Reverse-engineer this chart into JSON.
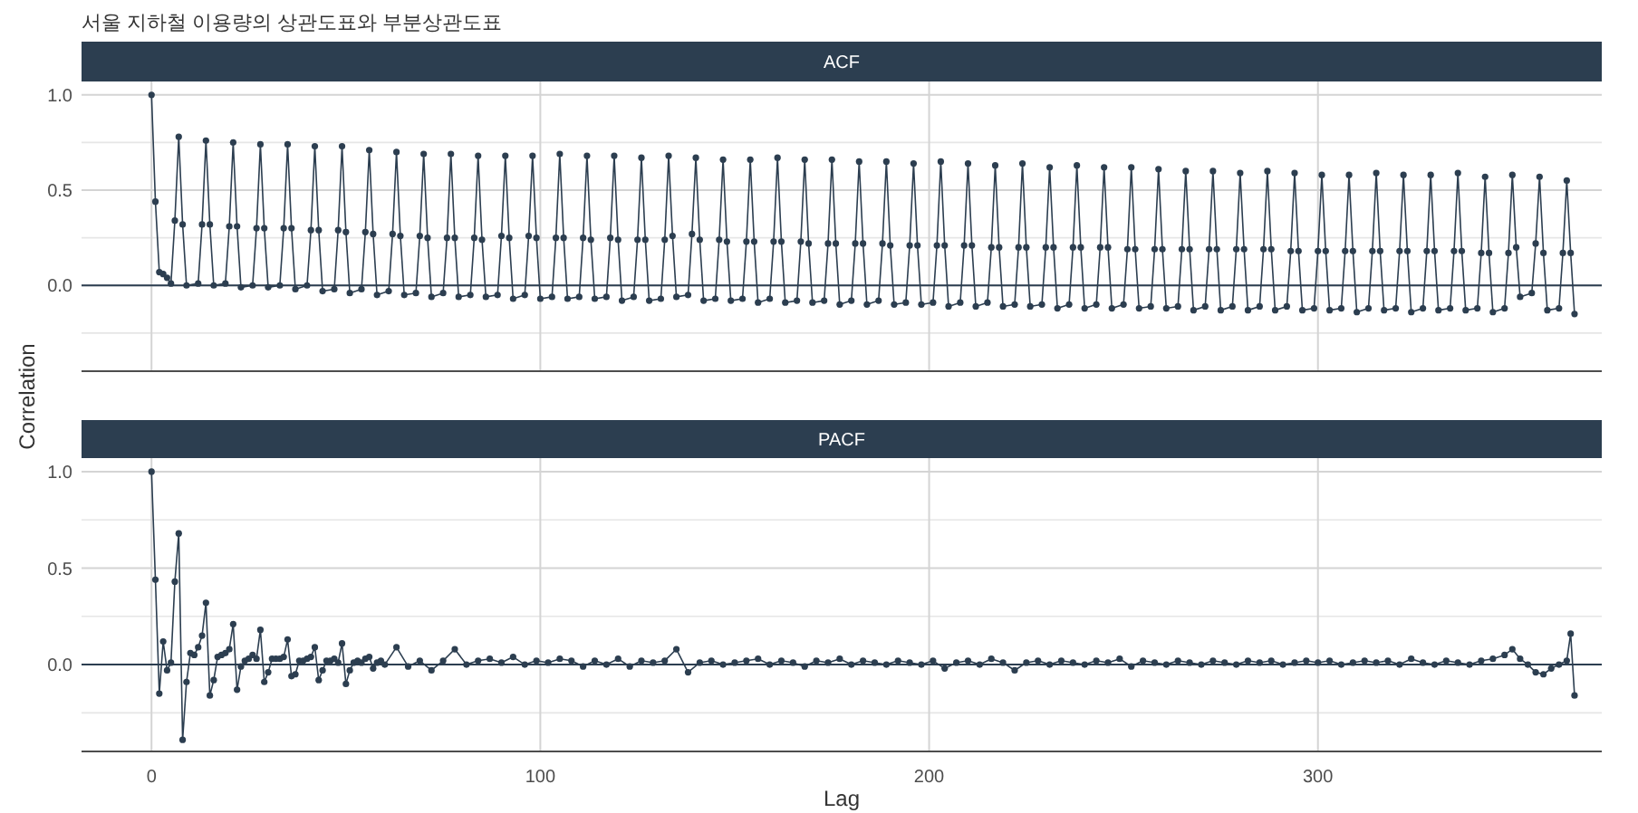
{
  "chart_data": [
    {
      "type": "line",
      "title": "서울 지하철 이용량의 상관도표와 부분상관도표",
      "subtitle": "ACF",
      "ylabel": "Correlation",
      "xlim": [
        -18,
        373
      ],
      "ylim": [
        -0.45,
        1.07
      ],
      "xticks": [
        0,
        100,
        200,
        300
      ],
      "yticks": [
        {
          "value": 0,
          "label": "0.0"
        },
        {
          "value": 0.5,
          "label": "0.5"
        },
        {
          "value": 1,
          "label": "1.0"
        }
      ],
      "tick_labels": "y",
      "grid": true,
      "marker": "circle",
      "line_style": "solid",
      "ref_lines": [
        {
          "axis": "y",
          "value": 0,
          "color": "#2c3e50"
        }
      ],
      "series": [
        {
          "color": "#2c3e50",
          "x": [
            0,
            1,
            2,
            3,
            4,
            5,
            6,
            7,
            8,
            9,
            12,
            13,
            14,
            15,
            16,
            19,
            20,
            21,
            22,
            23,
            26,
            27,
            28,
            29,
            30,
            33,
            34,
            35,
            36,
            37,
            40,
            41,
            42,
            43,
            44,
            47,
            48,
            49,
            50,
            51,
            54,
            55,
            56,
            57,
            58,
            61,
            62,
            63,
            64,
            65,
            68,
            69,
            70,
            71,
            72,
            75,
            76,
            77,
            78,
            79,
            82,
            83,
            84,
            85,
            86,
            89,
            90,
            91,
            92,
            93,
            96,
            97,
            98,
            99,
            100,
            103,
            104,
            105,
            106,
            107,
            110,
            111,
            112,
            113,
            114,
            117,
            118,
            119,
            120,
            121,
            124,
            125,
            126,
            127,
            128,
            131,
            132,
            133,
            134,
            135,
            138,
            139,
            140,
            141,
            142,
            145,
            146,
            147,
            148,
            149,
            152,
            153,
            154,
            155,
            156,
            159,
            160,
            161,
            162,
            163,
            166,
            167,
            168,
            169,
            170,
            173,
            174,
            175,
            176,
            177,
            180,
            181,
            182,
            183,
            184,
            187,
            188,
            189,
            190,
            191,
            194,
            195,
            196,
            197,
            198,
            201,
            202,
            203,
            204,
            205,
            208,
            209,
            210,
            211,
            212,
            215,
            216,
            217,
            218,
            219,
            222,
            223,
            224,
            225,
            226,
            229,
            230,
            231,
            232,
            233,
            236,
            237,
            238,
            239,
            240,
            243,
            244,
            245,
            246,
            247,
            250,
            251,
            252,
            253,
            254,
            257,
            258,
            259,
            260,
            261,
            264,
            265,
            266,
            267,
            268,
            271,
            272,
            273,
            274,
            275,
            278,
            279,
            280,
            281,
            282,
            285,
            286,
            287,
            288,
            289,
            292,
            293,
            294,
            295,
            296,
            299,
            300,
            301,
            302,
            303,
            306,
            307,
            308,
            309,
            310,
            313,
            314,
            315,
            316,
            317,
            320,
            321,
            322,
            323,
            324,
            327,
            328,
            329,
            330,
            331,
            334,
            335,
            336,
            337,
            338,
            341,
            342,
            343,
            344,
            345,
            348,
            349,
            350,
            351,
            352,
            355,
            356,
            357,
            358,
            359,
            362,
            363,
            364,
            365,
            366
          ],
          "values": [
            1.0,
            0.44,
            0.07,
            0.06,
            0.04,
            0.01,
            0.34,
            0.78,
            0.32,
            0.0,
            0.01,
            0.32,
            0.76,
            0.32,
            0.0,
            0.01,
            0.31,
            0.75,
            0.31,
            -0.01,
            0.0,
            0.3,
            0.74,
            0.3,
            -0.01,
            0.0,
            0.3,
            0.74,
            0.3,
            -0.02,
            0.0,
            0.29,
            0.73,
            0.29,
            -0.03,
            -0.02,
            0.29,
            0.73,
            0.28,
            -0.04,
            -0.02,
            0.28,
            0.71,
            0.27,
            -0.05,
            -0.03,
            0.27,
            0.7,
            0.26,
            -0.05,
            -0.04,
            0.26,
            0.69,
            0.25,
            -0.06,
            -0.04,
            0.25,
            0.69,
            0.25,
            -0.06,
            -0.05,
            0.25,
            0.68,
            0.24,
            -0.06,
            -0.05,
            0.26,
            0.68,
            0.25,
            -0.07,
            -0.05,
            0.26,
            0.68,
            0.25,
            -0.07,
            -0.06,
            0.25,
            0.69,
            0.25,
            -0.07,
            -0.06,
            0.25,
            0.68,
            0.24,
            -0.07,
            -0.06,
            0.25,
            0.68,
            0.24,
            -0.08,
            -0.06,
            0.24,
            0.67,
            0.24,
            -0.08,
            -0.07,
            0.24,
            0.68,
            0.26,
            -0.06,
            -0.05,
            0.27,
            0.67,
            0.24,
            -0.08,
            -0.07,
            0.24,
            0.66,
            0.23,
            -0.08,
            -0.07,
            0.23,
            0.66,
            0.23,
            -0.09,
            -0.07,
            0.23,
            0.67,
            0.23,
            -0.09,
            -0.08,
            0.23,
            0.66,
            0.22,
            -0.09,
            -0.08,
            0.22,
            0.66,
            0.22,
            -0.1,
            -0.08,
            0.22,
            0.65,
            0.22,
            -0.1,
            -0.08,
            0.22,
            0.65,
            0.21,
            -0.1,
            -0.09,
            0.21,
            0.64,
            0.21,
            -0.1,
            -0.09,
            0.21,
            0.65,
            0.21,
            -0.11,
            -0.09,
            0.21,
            0.64,
            0.21,
            -0.11,
            -0.09,
            0.2,
            0.63,
            0.2,
            -0.11,
            -0.1,
            0.2,
            0.64,
            0.2,
            -0.11,
            -0.1,
            0.2,
            0.62,
            0.2,
            -0.12,
            -0.1,
            0.2,
            0.63,
            0.2,
            -0.12,
            -0.1,
            0.2,
            0.62,
            0.2,
            -0.12,
            -0.1,
            0.19,
            0.62,
            0.19,
            -0.12,
            -0.11,
            0.19,
            0.61,
            0.19,
            -0.12,
            -0.11,
            0.19,
            0.6,
            0.19,
            -0.13,
            -0.11,
            0.19,
            0.6,
            0.19,
            -0.13,
            -0.11,
            0.19,
            0.59,
            0.19,
            -0.13,
            -0.11,
            0.19,
            0.6,
            0.19,
            -0.13,
            -0.11,
            0.18,
            0.59,
            0.18,
            -0.13,
            -0.12,
            0.18,
            0.58,
            0.18,
            -0.13,
            -0.12,
            0.18,
            0.58,
            0.18,
            -0.14,
            -0.12,
            0.18,
            0.59,
            0.18,
            -0.13,
            -0.12,
            0.18,
            0.58,
            0.18,
            -0.14,
            -0.12,
            0.18,
            0.58,
            0.18,
            -0.13,
            -0.12,
            0.18,
            0.59,
            0.18,
            -0.13,
            -0.12,
            0.17,
            0.57,
            0.17,
            -0.14,
            -0.12,
            0.17,
            0.58,
            0.2,
            -0.06,
            -0.04,
            0.22,
            0.57,
            0.17,
            -0.13,
            -0.12,
            0.17,
            0.55,
            0.17,
            -0.15
          ]
        }
      ]
    },
    {
      "type": "line",
      "title": "PACF",
      "xlabel": "Lag",
      "xlim": [
        -18,
        373
      ],
      "ylim": [
        -0.45,
        1.07
      ],
      "xticks": [
        0,
        100,
        200,
        300
      ],
      "yticks": [
        {
          "value": 0,
          "label": "0.0"
        },
        {
          "value": 0.5,
          "label": "0.5"
        },
        {
          "value": 1,
          "label": "1.0"
        }
      ],
      "grid": true,
      "marker": "circle",
      "line_style": "solid",
      "ref_lines": [
        {
          "axis": "y",
          "value": 0,
          "color": "#2c3e50"
        }
      ],
      "series": [
        {
          "color": "#2c3e50",
          "x": [
            0,
            1,
            2,
            3,
            4,
            5,
            6,
            7,
            8,
            9,
            10,
            11,
            12,
            13,
            14,
            15,
            16,
            17,
            18,
            19,
            20,
            21,
            22,
            23,
            24,
            25,
            26,
            27,
            28,
            29,
            30,
            31,
            32,
            33,
            34,
            35,
            36,
            37,
            38,
            39,
            40,
            41,
            42,
            43,
            44,
            45,
            46,
            47,
            48,
            49,
            50,
            51,
            52,
            53,
            54,
            55,
            56,
            57,
            58,
            59,
            60,
            63,
            66,
            69,
            72,
            75,
            78,
            81,
            84,
            87,
            90,
            93,
            96,
            99,
            102,
            105,
            108,
            111,
            114,
            117,
            120,
            123,
            126,
            129,
            132,
            135,
            138,
            141,
            144,
            147,
            150,
            153,
            156,
            159,
            162,
            165,
            168,
            171,
            174,
            177,
            180,
            183,
            186,
            189,
            192,
            195,
            198,
            201,
            204,
            207,
            210,
            213,
            216,
            219,
            222,
            225,
            228,
            231,
            234,
            237,
            240,
            243,
            246,
            249,
            252,
            255,
            258,
            261,
            264,
            267,
            270,
            273,
            276,
            279,
            282,
            285,
            288,
            291,
            294,
            297,
            300,
            303,
            306,
            309,
            312,
            315,
            318,
            321,
            324,
            327,
            330,
            333,
            336,
            339,
            342,
            345,
            348,
            350,
            352,
            354,
            356,
            358,
            360,
            362,
            364,
            365,
            366
          ],
          "values": [
            1.0,
            0.44,
            -0.15,
            0.12,
            -0.03,
            0.01,
            0.43,
            0.68,
            -0.39,
            -0.09,
            0.06,
            0.05,
            0.09,
            0.15,
            0.32,
            -0.16,
            -0.08,
            0.04,
            0.05,
            0.06,
            0.08,
            0.21,
            -0.13,
            -0.01,
            0.02,
            0.03,
            0.05,
            0.03,
            0.18,
            -0.09,
            -0.04,
            0.03,
            0.03,
            0.03,
            0.04,
            0.13,
            -0.06,
            -0.05,
            0.02,
            0.02,
            0.03,
            0.04,
            0.09,
            -0.08,
            -0.03,
            0.02,
            0.02,
            0.03,
            0.01,
            0.11,
            -0.1,
            -0.03,
            0.01,
            0.02,
            0.01,
            0.03,
            0.04,
            -0.02,
            0.01,
            0.02,
            0.0,
            0.09,
            -0.01,
            0.02,
            -0.03,
            0.02,
            0.08,
            0.0,
            0.02,
            0.03,
            0.01,
            0.04,
            0.0,
            0.02,
            0.01,
            0.03,
            0.02,
            -0.01,
            0.02,
            0.0,
            0.03,
            -0.01,
            0.02,
            0.01,
            0.02,
            0.08,
            -0.04,
            0.01,
            0.02,
            0.0,
            0.01,
            0.02,
            0.03,
            0.0,
            0.02,
            0.01,
            -0.01,
            0.02,
            0.01,
            0.03,
            0.0,
            0.02,
            0.01,
            0.0,
            0.02,
            0.01,
            0.0,
            0.02,
            -0.02,
            0.01,
            0.02,
            0.0,
            0.03,
            0.01,
            -0.03,
            0.01,
            0.02,
            0.0,
            0.02,
            0.01,
            0.0,
            0.02,
            0.01,
            0.03,
            -0.01,
            0.02,
            0.01,
            0.0,
            0.02,
            0.01,
            0.0,
            0.02,
            0.01,
            0.0,
            0.02,
            0.01,
            0.02,
            0.0,
            0.01,
            0.02,
            0.01,
            0.02,
            0.0,
            0.01,
            0.02,
            0.01,
            0.02,
            0.0,
            0.03,
            0.01,
            0.0,
            0.02,
            0.01,
            0.0,
            0.02,
            0.03,
            0.05,
            0.08,
            0.03,
            0.0,
            -0.04,
            -0.05,
            -0.02,
            0.0,
            0.02,
            0.16,
            -0.16
          ]
        }
      ]
    }
  ]
}
